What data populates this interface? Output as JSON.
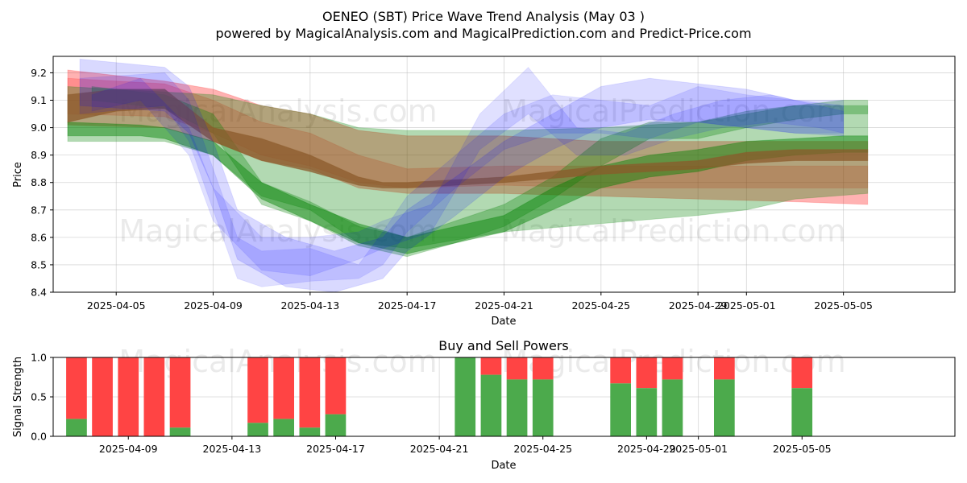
{
  "chart_data": [
    {
      "type": "area",
      "title": "OENEO (SBT) Price Wave Trend Analysis (May 03 )",
      "subtitle": "powered by MagicalAnalysis.com and MagicalPrediction.com and Predict-Price.com",
      "xlabel": "Date",
      "ylabel": "Price",
      "ylim": [
        8.4,
        9.26
      ],
      "xlim": [
        -2.6,
        34.6
      ],
      "grid": true,
      "x_ticks": [
        {
          "d": 0,
          "label": "2025-04-05"
        },
        {
          "d": 4,
          "label": "2025-04-09"
        },
        {
          "d": 8,
          "label": "2025-04-13"
        },
        {
          "d": 12,
          "label": "2025-04-17"
        },
        {
          "d": 16,
          "label": "2025-04-21"
        },
        {
          "d": 20,
          "label": "2025-04-25"
        },
        {
          "d": 24,
          "label": "2025-04-29"
        },
        {
          "d": 26,
          "label": "2025-05-01"
        },
        {
          "d": 30,
          "label": "2025-05-05"
        }
      ],
      "y_ticks": [
        {
          "v": 8.4,
          "label": "8.4"
        },
        {
          "v": 8.5,
          "label": "8.5"
        },
        {
          "v": 8.6,
          "label": "8.6"
        },
        {
          "v": 8.7,
          "label": "8.7"
        },
        {
          "v": 8.8,
          "label": "8.8"
        },
        {
          "v": 8.9,
          "label": "8.9"
        },
        {
          "v": 9.0,
          "label": "9.0"
        },
        {
          "v": 9.1,
          "label": "9.1"
        },
        {
          "v": 9.2,
          "label": "9.2"
        }
      ],
      "series": [
        {
          "name": "red-wave-1",
          "color": "#ff0000",
          "opacity": 0.3,
          "x": [
            -2,
            2,
            4,
            6,
            8,
            10,
            12,
            16,
            20,
            24,
            28,
            31
          ],
          "upper": [
            9.21,
            9.17,
            9.14,
            9.08,
            9.05,
            8.99,
            8.97,
            8.97,
            8.95,
            8.95,
            8.95,
            8.95
          ],
          "lower": [
            9.01,
            9.0,
            8.95,
            8.88,
            8.85,
            8.78,
            8.76,
            8.76,
            8.75,
            8.74,
            8.73,
            8.72
          ]
        },
        {
          "name": "red-wave-2",
          "color": "#ff0000",
          "opacity": 0.2,
          "x": [
            -2,
            2,
            4,
            6,
            8,
            10,
            12,
            16,
            20,
            24,
            28,
            31
          ],
          "upper": [
            9.18,
            9.16,
            9.1,
            9.02,
            8.98,
            8.9,
            8.85,
            8.86,
            8.86,
            8.86,
            8.86,
            8.86
          ],
          "lower": [
            9.05,
            9.04,
            8.98,
            8.9,
            8.86,
            8.8,
            8.78,
            8.79,
            8.78,
            8.78,
            8.78,
            8.78
          ]
        },
        {
          "name": "green-wave-1",
          "color": "#008000",
          "opacity": 0.3,
          "x": [
            -2,
            2,
            4,
            6,
            8,
            10,
            12,
            16,
            20,
            24,
            26,
            28,
            31
          ],
          "upper": [
            9.15,
            9.13,
            9.12,
            9.08,
            9.05,
            9.0,
            8.99,
            8.99,
            9.0,
            9.02,
            9.05,
            9.08,
            9.08
          ],
          "lower": [
            8.95,
            8.95,
            8.9,
            8.75,
            8.7,
            8.58,
            8.56,
            8.62,
            8.65,
            8.68,
            8.7,
            8.74,
            8.76
          ]
        },
        {
          "name": "green-wave-2",
          "color": "#008000",
          "opacity": 0.45,
          "x": [
            -2,
            1,
            2,
            4,
            6,
            8,
            10,
            12,
            14,
            16,
            18,
            20,
            22,
            24,
            26,
            28,
            30,
            31
          ],
          "upper": [
            9.02,
            9.01,
            9.0,
            8.95,
            8.8,
            8.72,
            8.65,
            8.6,
            8.64,
            8.68,
            8.78,
            8.86,
            8.9,
            8.92,
            8.95,
            8.96,
            8.97,
            8.97
          ],
          "lower": [
            8.97,
            8.97,
            8.96,
            8.9,
            8.74,
            8.66,
            8.58,
            8.54,
            8.58,
            8.62,
            8.7,
            8.78,
            8.82,
            8.84,
            8.88,
            8.9,
            8.91,
            8.91
          ]
        },
        {
          "name": "green-wave-3",
          "color": "#008000",
          "opacity": 0.3,
          "x": [
            -1,
            2,
            4,
            6,
            8,
            10,
            12,
            14,
            16,
            18,
            20,
            22,
            24,
            26,
            28,
            30,
            31
          ],
          "upper": [
            9.15,
            9.12,
            9.05,
            8.8,
            8.73,
            8.64,
            8.6,
            8.66,
            8.72,
            8.82,
            8.96,
            9.02,
            9.02,
            9.06,
            9.08,
            9.1,
            9.1
          ],
          "lower": [
            9.1,
            9.07,
            8.98,
            8.72,
            8.66,
            8.57,
            8.53,
            8.58,
            8.64,
            8.74,
            8.86,
            8.96,
            8.96,
            9.0,
            9.03,
            9.05,
            9.05
          ]
        },
        {
          "name": "brown-wave",
          "color": "#8b5a2b",
          "opacity": 0.75,
          "x": [
            -2,
            0,
            2,
            4,
            6,
            8,
            10,
            11,
            12,
            16,
            20,
            24,
            26,
            28,
            31
          ],
          "upper": [
            9.12,
            9.14,
            9.14,
            9.0,
            8.96,
            8.9,
            8.82,
            8.8,
            8.8,
            8.82,
            8.86,
            8.88,
            8.91,
            8.92,
            8.92
          ],
          "lower": [
            9.02,
            9.06,
            9.07,
            8.95,
            8.88,
            8.84,
            8.79,
            8.78,
            8.78,
            8.8,
            8.83,
            8.85,
            8.87,
            8.88,
            8.88
          ]
        },
        {
          "name": "blue-wave-1",
          "color": "#0000ff",
          "opacity": 0.15,
          "x": [
            -1.5,
            2,
            3,
            4,
            5,
            7,
            9,
            11,
            12,
            14,
            16,
            18,
            20,
            22,
            24,
            26,
            28,
            30
          ],
          "upper": [
            9.25,
            9.22,
            9.15,
            8.95,
            8.7,
            8.6,
            8.55,
            8.6,
            8.7,
            8.82,
            8.95,
            9.05,
            9.15,
            9.18,
            9.16,
            9.14,
            9.1,
            9.08
          ],
          "lower": [
            9.08,
            9.06,
            8.98,
            8.78,
            8.52,
            8.42,
            8.4,
            8.45,
            8.55,
            8.68,
            8.82,
            8.92,
            9.0,
            9.03,
            9.02,
            9.0,
            8.98,
            8.97
          ]
        },
        {
          "name": "blue-wave-2",
          "color": "#0000ff",
          "opacity": 0.12,
          "x": [
            -1.5,
            2,
            3,
            4,
            5,
            6,
            8,
            10,
            11,
            12,
            14,
            16,
            18,
            20,
            22,
            24,
            26,
            28,
            30
          ],
          "upper": [
            9.18,
            9.2,
            9.1,
            8.85,
            8.6,
            8.55,
            8.56,
            8.5,
            8.62,
            8.75,
            8.9,
            9.05,
            9.12,
            9.1,
            9.08,
            9.15,
            9.12,
            9.1,
            9.1
          ],
          "lower": [
            9.05,
            9.08,
            8.95,
            8.7,
            8.45,
            8.42,
            8.44,
            8.45,
            8.5,
            8.62,
            8.78,
            8.92,
            8.98,
            8.98,
            8.96,
            9.02,
            9.0,
            8.98,
            8.98
          ]
        },
        {
          "name": "blue-wave-3",
          "color": "#0000ff",
          "opacity": 0.12,
          "x": [
            -1,
            1,
            3,
            4,
            6,
            8,
            10,
            11,
            13,
            15,
            17,
            19,
            21,
            23,
            25,
            27,
            29,
            30
          ],
          "upper": [
            9.12,
            9.18,
            9.0,
            8.78,
            8.6,
            8.6,
            8.62,
            8.66,
            8.72,
            9.05,
            9.22,
            9.0,
            8.98,
            9.05,
            9.1,
            9.12,
            9.08,
            9.06
          ],
          "lower": [
            9.06,
            9.1,
            8.9,
            8.66,
            8.48,
            8.46,
            8.52,
            8.56,
            8.62,
            8.92,
            9.05,
            8.9,
            8.9,
            8.96,
            9.0,
            9.02,
            9.0,
            8.98
          ]
        }
      ],
      "watermarks": [
        "MagicalAnalysis.com",
        "MagicalPrediction.com",
        "MagicalAnalysis.com",
        "MagicalPrediction.com"
      ]
    },
    {
      "type": "bar",
      "title": "Buy and Sell Powers",
      "xlabel": "Date",
      "ylabel": "Signal Strength",
      "ylim": [
        0,
        1.0
      ],
      "xlim": [
        -0.9,
        33.9
      ],
      "x_ticks": [
        {
          "d": 2,
          "label": "2025-04-09"
        },
        {
          "d": 6,
          "label": "2025-04-13"
        },
        {
          "d": 10,
          "label": "2025-04-17"
        },
        {
          "d": 14,
          "label": "2025-04-21"
        },
        {
          "d": 18,
          "label": "2025-04-25"
        },
        {
          "d": 22,
          "label": "2025-04-29"
        },
        {
          "d": 24,
          "label": "2025-05-01"
        },
        {
          "d": 28,
          "label": "2025-05-05"
        }
      ],
      "y_ticks": [
        {
          "v": 0.0,
          "label": "0.0"
        },
        {
          "v": 0.5,
          "label": "0.5"
        },
        {
          "v": 1.0,
          "label": "1.0"
        }
      ],
      "series": [
        {
          "name": "Buy",
          "color": "#4caa4c"
        },
        {
          "name": "Sell",
          "color": "#ff4444"
        }
      ],
      "bars": [
        {
          "d": 0,
          "buy": 0.22
        },
        {
          "d": 1,
          "buy": 0.0
        },
        {
          "d": 2,
          "buy": 0.0
        },
        {
          "d": 3,
          "buy": 0.0
        },
        {
          "d": 4,
          "buy": 0.11
        },
        {
          "d": 7,
          "buy": 0.17
        },
        {
          "d": 8,
          "buy": 0.22
        },
        {
          "d": 9,
          "buy": 0.11
        },
        {
          "d": 10,
          "buy": 0.28
        },
        {
          "d": 15,
          "buy": 1.0
        },
        {
          "d": 16,
          "buy": 0.78
        },
        {
          "d": 17,
          "buy": 0.72
        },
        {
          "d": 18,
          "buy": 0.72
        },
        {
          "d": 21,
          "buy": 0.67
        },
        {
          "d": 22,
          "buy": 0.61
        },
        {
          "d": 23,
          "buy": 0.72
        },
        {
          "d": 25,
          "buy": 0.72
        },
        {
          "d": 28,
          "buy": 0.61
        }
      ],
      "watermarks": [
        "MagicalAnalysis.com",
        "MagicalPrediction.com"
      ]
    }
  ]
}
